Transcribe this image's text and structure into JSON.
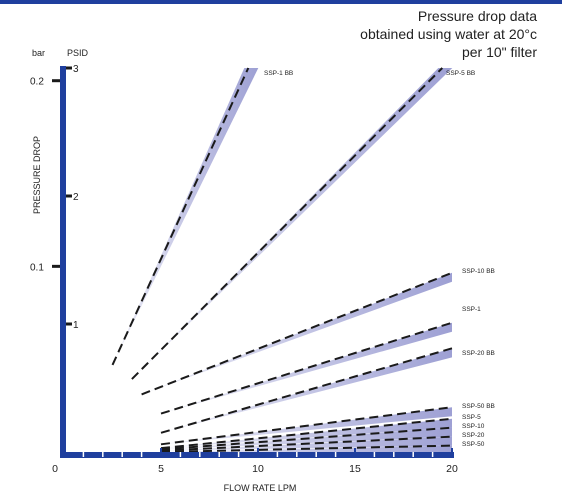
{
  "chart_data": {
    "type": "line",
    "title_lines": [
      "Pressure drop data",
      "obtained using water at 20°c",
      "per 10\" filter"
    ],
    "xlabel": "FLOW RATE LPM",
    "ylabel": "PRESSURE DROP",
    "left_unit": "bar",
    "right_unit": "PSID",
    "x_ticks": [
      "0",
      "5",
      "10",
      "15",
      "20"
    ],
    "bar_ticks": [
      "0.2",
      "0.1"
    ],
    "psid_ticks": [
      "3",
      "2",
      "1"
    ],
    "xlim": [
      0,
      20
    ],
    "ylim_psid": [
      0,
      3
    ],
    "accent_color": "#1f3f9e",
    "band_color": "#8c8fcc",
    "series": [
      {
        "name": "SSP-1 BB",
        "x": [
          2.5,
          9.5
        ],
        "y": [
          0.68,
          3.0
        ]
      },
      {
        "name": "SSP-5 BB",
        "x": [
          3.5,
          19.5
        ],
        "y": [
          0.57,
          3.0
        ]
      },
      {
        "name": "SSP-10 BB",
        "x": [
          4.0,
          20.0
        ],
        "y": [
          0.45,
          1.4
        ]
      },
      {
        "name": "SSP-1",
        "x": [
          5.0,
          20.0
        ],
        "y": [
          0.3,
          1.01
        ]
      },
      {
        "name": "SSP-20 BB",
        "x": [
          5.0,
          20.0
        ],
        "y": [
          0.15,
          0.81
        ]
      },
      {
        "name": "SSP-50 BB",
        "x": [
          5.0,
          20.0
        ],
        "y": [
          0.06,
          0.35
        ]
      },
      {
        "name": "SSP-5",
        "x": [
          5.0,
          20.0
        ],
        "y": [
          0.03,
          0.26
        ]
      },
      {
        "name": "SSP-10",
        "x": [
          5.0,
          20.0
        ],
        "y": [
          0.02,
          0.19
        ]
      },
      {
        "name": "SSP-20",
        "x": [
          5.0,
          20.0
        ],
        "y": [
          0.01,
          0.12
        ]
      },
      {
        "name": "SSP-50",
        "x": [
          5.0,
          20.0
        ],
        "y": [
          0.0,
          0.05
        ]
      }
    ]
  }
}
